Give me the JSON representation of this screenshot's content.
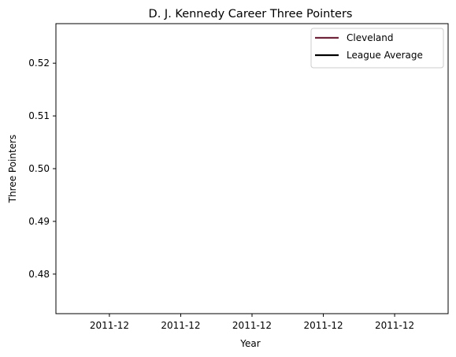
{
  "chart_data": {
    "type": "line",
    "title": "D. J. Kennedy Career Three Pointers",
    "xlabel": "Year",
    "ylabel": "Three Pointers",
    "x_tick_labels": [
      "2011-12",
      "2011-12",
      "2011-12",
      "2011-12",
      "2011-12"
    ],
    "y_tick_labels": [
      "0.48",
      "0.49",
      "0.50",
      "0.51",
      "0.52"
    ],
    "ylim": [
      0.4725,
      0.5275
    ],
    "grid": false,
    "legend_position": "top-right",
    "series": [
      {
        "name": "Cleveland",
        "color": "#6f263d",
        "x": [],
        "y": []
      },
      {
        "name": "League Average",
        "color": "#000000",
        "x": [],
        "y": []
      }
    ]
  }
}
